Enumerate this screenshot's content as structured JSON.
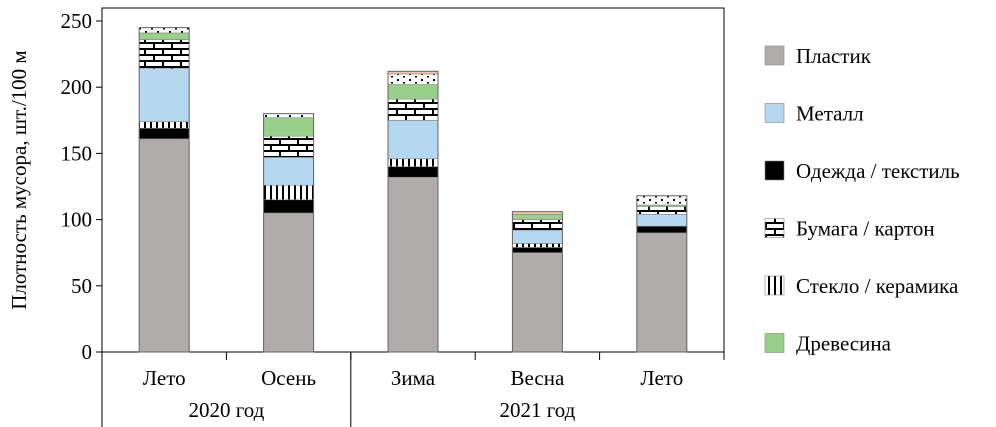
{
  "chart_data": {
    "type": "bar",
    "stacked": true,
    "ylabel": "Плотность мусора, шт./100 м",
    "ylim": [
      0,
      250
    ],
    "yticks": [
      0,
      50,
      100,
      150,
      200,
      250
    ],
    "categories": [
      "Лето",
      "Осень",
      "Зима",
      "Весна",
      "Лето"
    ],
    "groups": [
      {
        "label": "2020 год",
        "count": 2
      },
      {
        "label": "2021 год",
        "count": 3
      }
    ],
    "legend_position": "right",
    "series": [
      {
        "name": "Пластик",
        "pattern": "solid",
        "color": "#b0acac",
        "values": [
          161,
          105,
          132,
          75,
          90
        ]
      },
      {
        "name": "Одежда / текстиль",
        "pattern": "solid",
        "color": "#000000",
        "values": [
          8,
          10,
          8,
          4,
          5
        ]
      },
      {
        "name": "Стекло / керамика",
        "pattern": "vlines",
        "color": "#000000",
        "values": [
          5,
          11,
          6,
          3,
          0
        ]
      },
      {
        "name": "Металл",
        "pattern": "solid",
        "color": "#b4d8f0",
        "values": [
          40,
          21,
          29,
          10,
          9
        ]
      },
      {
        "name": "Бумага / картон",
        "pattern": "brick",
        "color": "#000000",
        "values": [
          22,
          16,
          16,
          8,
          6
        ]
      },
      {
        "name": "Древесина",
        "pattern": "solid",
        "color": "#98d08a",
        "values": [
          5,
          14,
          11,
          4,
          1
        ]
      },
      {
        "name": "",
        "pattern": "dots",
        "color": "#000000",
        "values": [
          4,
          3,
          8,
          0,
          7
        ]
      },
      {
        "name": "",
        "pattern": "solid",
        "color": "#f8c4a8",
        "values": [
          0,
          0,
          2,
          2,
          0
        ]
      }
    ],
    "legend_order": [
      "Пластик",
      "Металл",
      "Одежда / текстиль",
      "Бумага / картон",
      "Стекло / керамика",
      "Древесина"
    ]
  }
}
